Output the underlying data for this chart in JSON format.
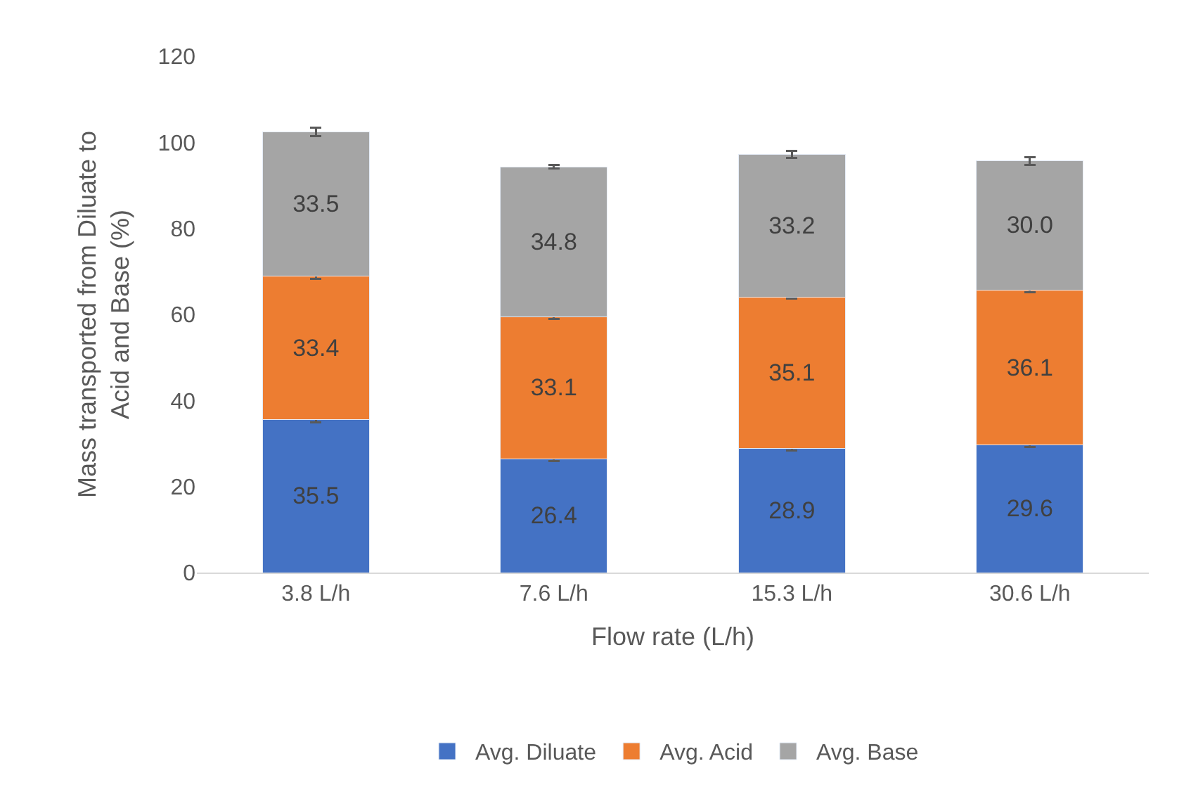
{
  "chart_data": {
    "type": "bar",
    "stacked": true,
    "xlabel": "Flow rate (L/h)",
    "ylabel": "Mass transported from Diluate to Acid and Base (%)",
    "categories": [
      "3.8 L/h",
      "7.6 L/h",
      "15.3 L/h",
      "30.6 L/h"
    ],
    "series": [
      {
        "name": "Avg. Diluate",
        "color": "#4472c4",
        "values": [
          35.5,
          26.4,
          28.9,
          29.6
        ],
        "errors": [
          0.6,
          0.5,
          0.6,
          0.4
        ],
        "value_labels": [
          "35.5",
          "26.4",
          "28.9",
          "29.6"
        ]
      },
      {
        "name": "Avg. Acid",
        "color": "#ed7d31",
        "values": [
          33.4,
          33.1,
          35.1,
          36.1
        ],
        "errors": [
          0.6,
          0.5,
          0.3,
          0.6
        ],
        "value_labels": [
          "33.4",
          "33.1",
          "35.1",
          "36.1"
        ]
      },
      {
        "name": "Avg. Base",
        "color": "#a5a5a5",
        "values": [
          33.5,
          34.8,
          33.2,
          30.0
        ],
        "errors": [
          1.0,
          0.4,
          0.8,
          0.9
        ],
        "value_labels": [
          "33.5",
          "34.8",
          "33.2",
          "30.0"
        ]
      }
    ],
    "ylim": [
      0,
      120
    ],
    "yticks": [
      0,
      20,
      40,
      60,
      80,
      100,
      120
    ],
    "legend": "bottom"
  }
}
